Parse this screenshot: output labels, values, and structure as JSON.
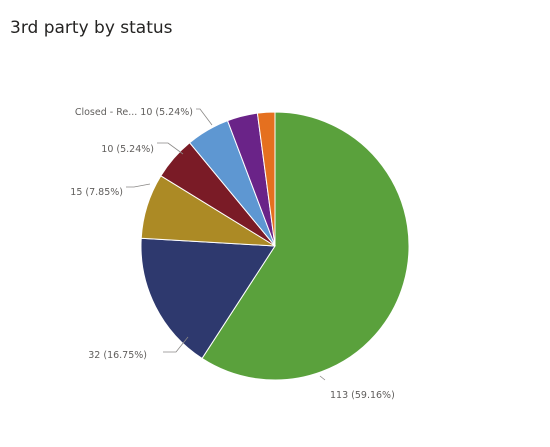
{
  "title": "3rd party by status",
  "chart_data": {
    "type": "pie",
    "title": "3rd party by status",
    "start_angle_deg": 0,
    "direction": "clockwise",
    "slices": [
      {
        "value": 113,
        "percent": "59.16%",
        "label": "113 (59.16%)",
        "color": "#5aa13c"
      },
      {
        "value": 32,
        "percent": "16.75%",
        "label": "32 (16.75%)",
        "color": "#2e396e"
      },
      {
        "value": 15,
        "percent": "7.85%",
        "label": "15 (7.85%)",
        "color": "#ac8a25"
      },
      {
        "value": 10,
        "percent": "5.24%",
        "label": "10 (5.24%)",
        "color": "#7a1b26"
      },
      {
        "value": 10,
        "percent": "5.24%",
        "label": "Closed - Re... 10 (5.24%)",
        "color": "#5e97d2"
      },
      {
        "value": 7,
        "percent": "3.66%",
        "label": "",
        "color": "#6a2388"
      },
      {
        "value": 4,
        "percent": "2.09%",
        "label": "",
        "color": "#e5701f"
      }
    ]
  }
}
